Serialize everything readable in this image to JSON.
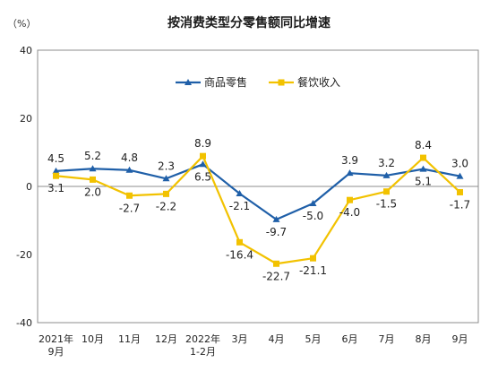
{
  "chart_data": {
    "type": "line",
    "title": "按消费类型分零售额同比增速",
    "unit": "（%）",
    "ylim": [
      -40,
      40
    ],
    "yticks": [
      "40",
      "20",
      "0",
      "-20",
      "-40"
    ],
    "categories": [
      [
        "2021年",
        "9月"
      ],
      [
        "10月"
      ],
      [
        "11月"
      ],
      [
        "12月"
      ],
      [
        "2022年",
        "1-2月"
      ],
      [
        "3月"
      ],
      [
        "4月"
      ],
      [
        "5月"
      ],
      [
        "6月"
      ],
      [
        "7月"
      ],
      [
        "8月"
      ],
      [
        "9月"
      ]
    ],
    "legend_position": "top-center",
    "series": [
      {
        "name": "商品零售",
        "color": "#1f5fa8",
        "marker": "triangle",
        "values": [
          4.5,
          5.2,
          4.8,
          2.3,
          6.5,
          -2.1,
          -9.7,
          -5.0,
          3.9,
          3.2,
          5.1,
          3.0
        ],
        "labels": [
          "4.5",
          "5.2",
          "4.8",
          "2.3",
          "6.5",
          "-2.1",
          "-9.7",
          "-5.0",
          "3.9",
          "3.2",
          "5.1",
          "3.0"
        ],
        "label_pos": [
          "above",
          "above",
          "above",
          "above",
          "below",
          "below",
          "below",
          "below",
          "above",
          "above",
          "below",
          "above"
        ]
      },
      {
        "name": "餐饮收入",
        "color": "#f2c200",
        "marker": "square",
        "values": [
          3.1,
          2.0,
          -2.7,
          -2.2,
          8.9,
          -16.4,
          -22.7,
          -21.1,
          -4.0,
          -1.5,
          8.4,
          -1.7
        ],
        "labels": [
          "3.1",
          "2.0",
          "-2.7",
          "-2.2",
          "8.9",
          "-16.4",
          "-22.7",
          "-21.1",
          "-4.0",
          "-1.5",
          "8.4",
          "-1.7"
        ],
        "label_pos": [
          "below",
          "below",
          "below",
          "below",
          "above",
          "below",
          "below",
          "below",
          "below",
          "below",
          "above",
          "below"
        ]
      }
    ]
  }
}
